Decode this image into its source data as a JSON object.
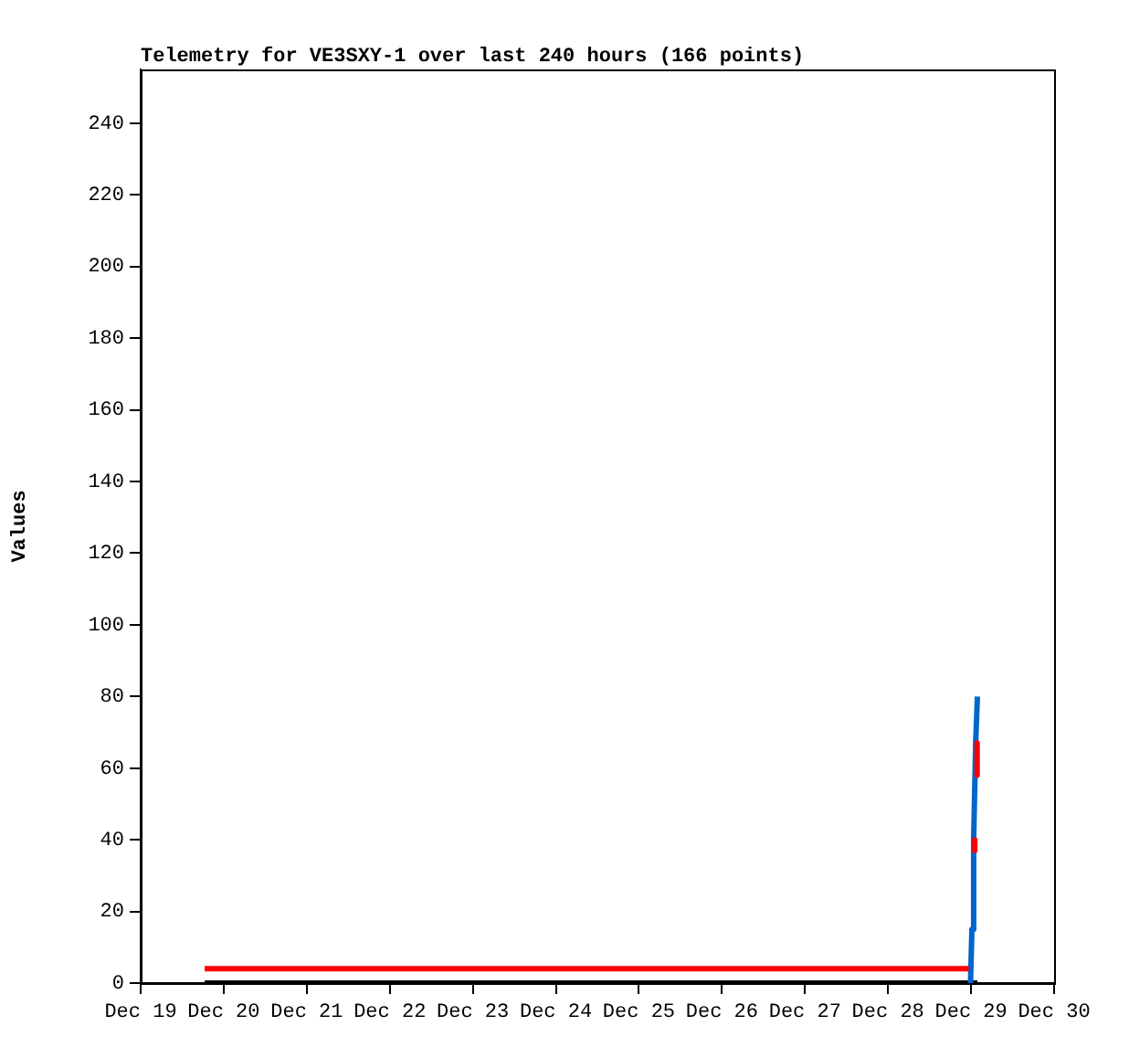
{
  "chart_data": {
    "type": "line",
    "title": "Telemetry for VE3SXY-1 over last 240 hours (166 points)",
    "ylabel": "Values",
    "xlim": [
      "--12-19",
      "--12-30"
    ],
    "xticks": [
      {
        "value": "--12-19",
        "label": "Dec 19"
      },
      {
        "value": "--12-20",
        "label": "Dec 20"
      },
      {
        "value": "--12-21",
        "label": "Dec 21"
      },
      {
        "value": "--12-22",
        "label": "Dec 22"
      },
      {
        "value": "--12-23",
        "label": "Dec 23"
      },
      {
        "value": "--12-24",
        "label": "Dec 24"
      },
      {
        "value": "--12-25",
        "label": "Dec 25"
      },
      {
        "value": "--12-26",
        "label": "Dec 26"
      },
      {
        "value": "--12-27",
        "label": "Dec 27"
      },
      {
        "value": "--12-28",
        "label": "Dec 28"
      },
      {
        "value": "--12-29",
        "label": "Dec 29"
      },
      {
        "value": "--12-30",
        "label": "Dec 30"
      }
    ],
    "ylim": [
      0,
      255
    ],
    "yticks": [
      0,
      20,
      40,
      60,
      80,
      100,
      120,
      140,
      160,
      180,
      200,
      220,
      240
    ],
    "grid": false,
    "legend": false,
    "marker": "none",
    "line_style": "solid",
    "series": [
      {
        "color": "#000000",
        "x": [
          "--12-19T18:30",
          "--12-29T01:50"
        ],
        "values": [
          0,
          0
        ]
      },
      {
        "color": "#0066cc",
        "x": [
          "--12-28T23:50",
          "--12-29T00:15",
          "--12-29T00:45",
          "--12-29T01:20",
          "--12-29T01:50"
        ],
        "values": [
          0,
          15,
          40,
          67,
          80
        ]
      },
      {
        "color": "#ff0000",
        "x": [
          "--12-19T18:30",
          "--12-28T23:20",
          "--12-29T00:00",
          "--12-29T01:05",
          "--12-29T01:05",
          "--12-29T01:20",
          "--12-29T01:45",
          "--12-29T01:45"
        ],
        "values": [
          4,
          4,
          null,
          40,
          37,
          null,
          67,
          58
        ]
      }
    ]
  }
}
